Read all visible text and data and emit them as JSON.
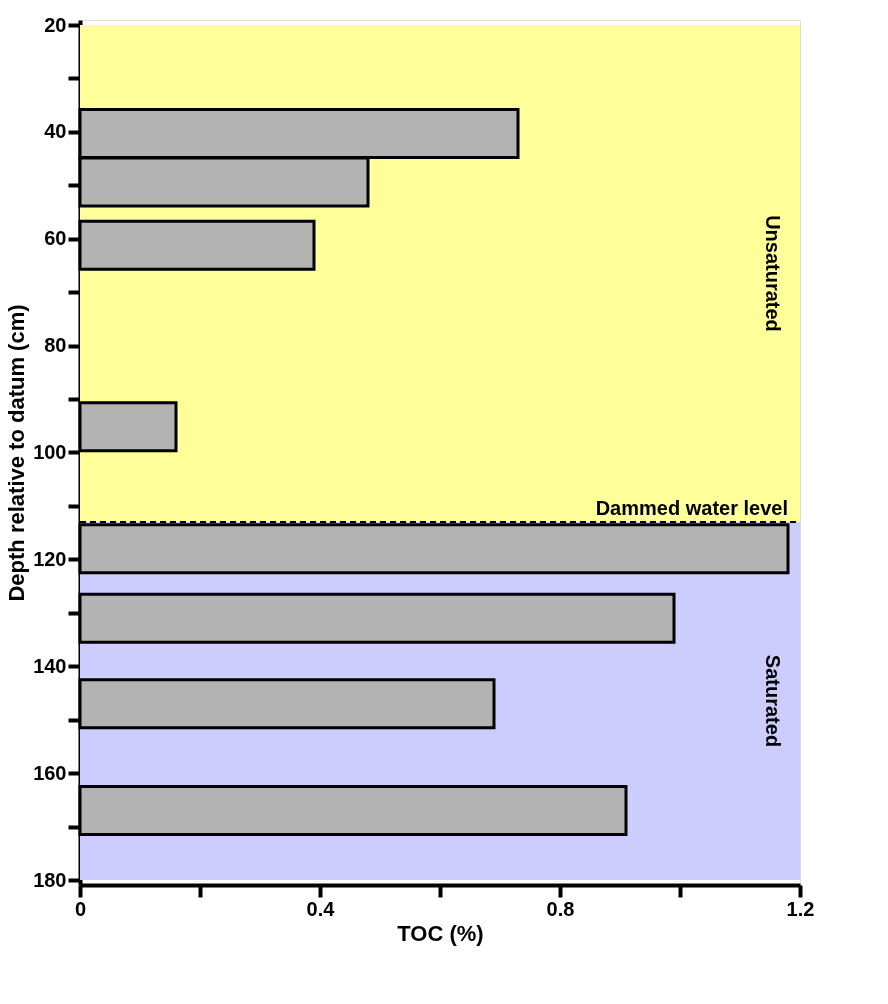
{
  "chart_data": {
    "type": "bar",
    "orientation": "horizontal",
    "xlabel": "TOC (%)",
    "ylabel": "Depth relative to datum (cm)",
    "x": [
      40.3,
      49.4,
      61.2,
      95.2,
      118,
      131,
      147,
      167
    ],
    "values": [
      0.73,
      0.48,
      0.39,
      0.16,
      1.18,
      0.99,
      0.69,
      0.91
    ],
    "color": "#b3b3b3",
    "xlim": [
      0,
      1.2
    ],
    "xticks": [
      0,
      {
        "value": 0.2,
        "label": null
      },
      0.4,
      {
        "value": 0.6,
        "label": null
      },
      0.8,
      {
        "value": 1,
        "label": null
      },
      1.2
    ],
    "ylim": [
      180,
      20
    ],
    "yticks": [
      20,
      {
        "value": 30,
        "label": null
      },
      40,
      {
        "value": 50,
        "label": null
      },
      60,
      {
        "value": 70,
        "label": null
      },
      80,
      {
        "value": 90,
        "label": null
      },
      100,
      {
        "value": 110,
        "label": null
      },
      120,
      {
        "value": 130,
        "label": null
      },
      140,
      {
        "value": 150,
        "label": null
      },
      160,
      {
        "value": 170,
        "label": null
      },
      180
    ],
    "bands": [
      {
        "axis": "y",
        "from": 20,
        "to": 113,
        "label": "Unsaturated",
        "color": "#ffff99"
      },
      {
        "axis": "y",
        "from": 113,
        "to": 180,
        "label": "Saturated",
        "color": "#ccccff"
      }
    ],
    "ref_lines": [
      {
        "axis": "y",
        "value": 113,
        "label": "Dammed water level",
        "line_style": "dashed"
      }
    ],
    "grid": false
  }
}
